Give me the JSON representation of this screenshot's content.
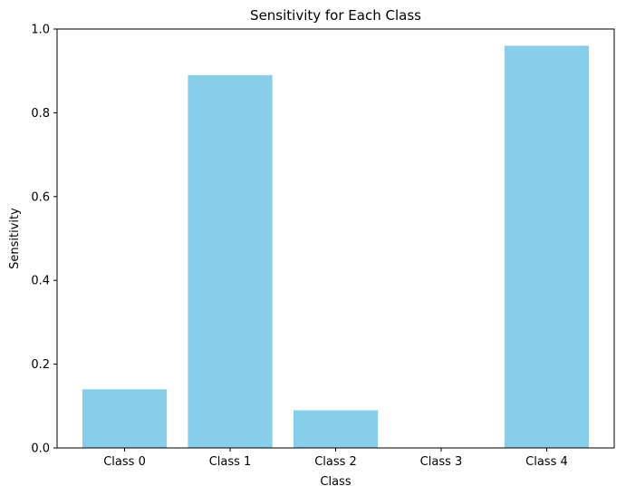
{
  "chart_data": {
    "type": "bar",
    "title": "Sensitivity for Each Class",
    "xlabel": "Class",
    "ylabel": "Sensitivity",
    "categories": [
      "Class 0",
      "Class 1",
      "Class 2",
      "Class 3",
      "Class 4"
    ],
    "values": [
      0.14,
      0.89,
      0.09,
      0.0,
      0.96
    ],
    "ylim": [
      0,
      1.0
    ],
    "yticks": [
      0.0,
      0.2,
      0.4,
      0.6,
      0.8,
      1.0
    ],
    "ytick_labels": [
      "0.0",
      "0.2",
      "0.4",
      "0.6",
      "0.8",
      "1.0"
    ],
    "bar_color": "#87ceeb",
    "grid": false,
    "legend": false
  }
}
